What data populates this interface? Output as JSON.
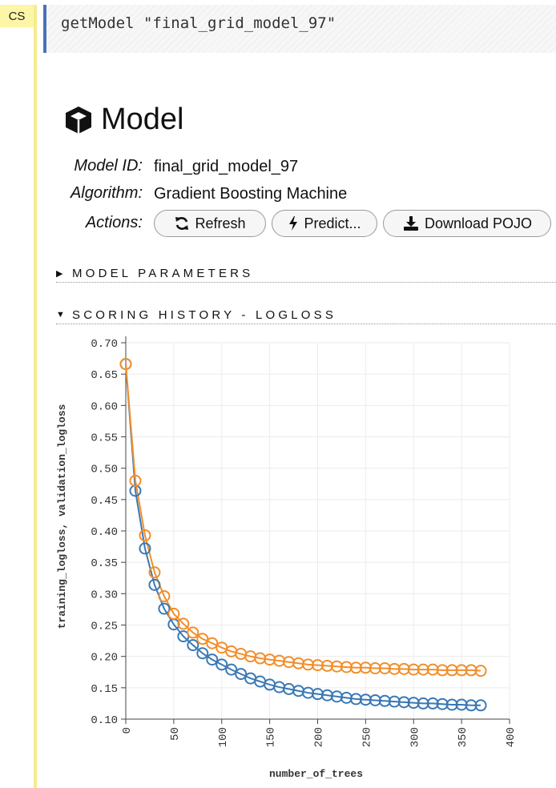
{
  "cell": {
    "type_tag": "CS",
    "code": "getModel \"final_grid_model_97\""
  },
  "model": {
    "title": "Model",
    "icon": "cube-icon",
    "fields": [
      {
        "label": "Model ID:",
        "value": "final_grid_model_97"
      },
      {
        "label": "Algorithm:",
        "value": "Gradient Boosting Machine"
      }
    ],
    "actions_label": "Actions:",
    "actions": [
      {
        "label": "Refresh",
        "icon": "refresh-icon"
      },
      {
        "label": "Predict...",
        "icon": "bolt-icon"
      },
      {
        "label": "Download POJO",
        "icon": "download-icon"
      }
    ]
  },
  "sections": {
    "model_parameters": {
      "label": "MODEL PARAMETERS",
      "expanded": false
    },
    "scoring_history": {
      "label": "SCORING HISTORY - LOGLOSS",
      "expanded": true
    }
  },
  "chart_data": {
    "type": "line",
    "xlabel": "number_of_trees",
    "ylabel": "training_logloss, validation_logloss",
    "xlim": [
      0,
      400
    ],
    "ylim": [
      0.1,
      0.7
    ],
    "x_ticks": [
      "0",
      "50",
      "100",
      "150",
      "200",
      "250",
      "300",
      "350",
      "400"
    ],
    "y_ticks": [
      "0.10",
      "0.15",
      "0.20",
      "0.25",
      "0.30",
      "0.35",
      "0.40",
      "0.45",
      "0.50",
      "0.55",
      "0.60",
      "0.65",
      "0.70"
    ],
    "grid": true,
    "x": [
      0,
      10,
      20,
      30,
      40,
      50,
      60,
      70,
      80,
      90,
      100,
      110,
      120,
      130,
      140,
      150,
      160,
      170,
      180,
      190,
      200,
      210,
      220,
      230,
      240,
      250,
      260,
      270,
      280,
      290,
      300,
      310,
      320,
      330,
      340,
      350,
      360,
      370
    ],
    "series": [
      {
        "color": "#3a78b5",
        "values": [
          0.666,
          0.464,
          0.372,
          0.314,
          0.276,
          0.251,
          0.232,
          0.218,
          0.205,
          0.195,
          0.187,
          0.179,
          0.172,
          0.165,
          0.16,
          0.155,
          0.151,
          0.148,
          0.145,
          0.142,
          0.14,
          0.138,
          0.136,
          0.134,
          0.132,
          0.131,
          0.13,
          0.129,
          0.128,
          0.127,
          0.126,
          0.125,
          0.125,
          0.124,
          0.123,
          0.123,
          0.122,
          0.122
        ]
      },
      {
        "color": "#f28e2b",
        "values": [
          0.666,
          0.48,
          0.393,
          0.334,
          0.296,
          0.268,
          0.252,
          0.238,
          0.228,
          0.221,
          0.214,
          0.208,
          0.204,
          0.2,
          0.197,
          0.195,
          0.193,
          0.191,
          0.189,
          0.187,
          0.186,
          0.185,
          0.184,
          0.183,
          0.182,
          0.182,
          0.181,
          0.181,
          0.18,
          0.18,
          0.179,
          0.179,
          0.179,
          0.178,
          0.178,
          0.178,
          0.178,
          0.177
        ]
      }
    ]
  }
}
